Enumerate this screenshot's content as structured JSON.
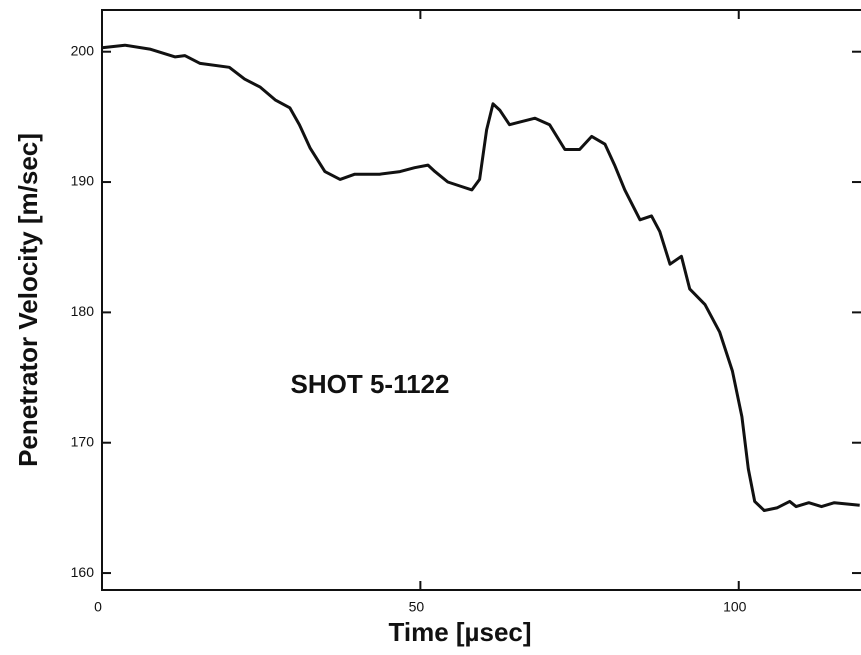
{
  "chart_data": {
    "type": "line",
    "x_label": "Time [µsec]",
    "y_label": "Penetrator Velocity [m/sec]",
    "annotation": "SHOT 5-1122",
    "xlim": [
      0,
      119.2
    ],
    "xticks": [
      0,
      50,
      100
    ],
    "ylim": [
      158.7,
      203.2
    ],
    "yticks": [
      160,
      170,
      180,
      190,
      200
    ],
    "series": [
      {
        "color": "#111111",
        "x": [
          0,
          3.6,
          7.5,
          11.5,
          13,
          15.4,
          20,
          22.4,
          24.8,
          27.2,
          29.5,
          31,
          32.7,
          35,
          37.4,
          39.7,
          43.6,
          46.8,
          49.1,
          51.2,
          52.3,
          54.3,
          56.2,
          58.1,
          59.3,
          60.4,
          61.4,
          62.5,
          64,
          65.6,
          68,
          70.3,
          72.7,
          75,
          76.9,
          79,
          80.5,
          82.1,
          84.5,
          86.3,
          87.6,
          89.2,
          91,
          92.3,
          94.7,
          97,
          99,
          100.5,
          101.5,
          102.5,
          104,
          106,
          108,
          109,
          111,
          113,
          115,
          119
        ],
        "values": [
          200.3,
          200.5,
          200.2,
          199.6,
          199.7,
          199.1,
          198.8,
          197.9,
          197.3,
          196.3,
          195.7,
          194.4,
          192.6,
          190.8,
          190.2,
          190.6,
          190.6,
          190.8,
          191.1,
          191.3,
          190.8,
          190.0,
          189.7,
          189.4,
          190.2,
          194.0,
          196.0,
          195.5,
          194.4,
          194.6,
          194.9,
          194.4,
          192.5,
          192.5,
          193.5,
          192.9,
          191.3,
          189.4,
          187.1,
          187.4,
          186.2,
          183.7,
          184.3,
          181.8,
          180.6,
          178.5,
          175.5,
          172,
          168,
          165.5,
          164.8,
          165,
          165.5,
          165.1,
          165.4,
          165.1,
          165.4,
          165.2
        ]
      }
    ]
  }
}
